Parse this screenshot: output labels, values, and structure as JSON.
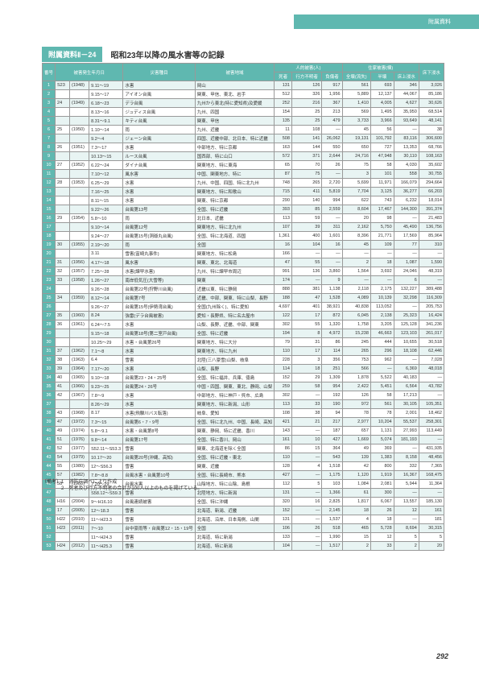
{
  "header_label": "附属資料",
  "title_badge": "附属資料Ⅱ－24",
  "title_text": "昭和23年以降の風水害等の記録",
  "page_number": "292",
  "notes": [
    "（備考）1　消防庁調べにより作成",
    "　　　　2　死者及び行方不明者の合計が100人以上のものを掲げている。"
  ],
  "columns": {
    "top": [
      "番号",
      "被害発生年月日",
      "災害種目",
      "被害地域",
      "人的被害(人)",
      "住家被害(棟)",
      "床下浸水"
    ],
    "human": [
      "死者",
      "行方不明者",
      "負傷者"
    ],
    "house": [
      "全壊(流失)",
      "半壊",
      "床上浸水"
    ]
  },
  "rows": [
    {
      "i": 1,
      "y": "S23",
      "ye": "(1948)",
      "d": "9.11～19",
      "n": "水害",
      "r": "岡山",
      "v": [
        "131",
        "126",
        "917",
        "561",
        "693",
        "346",
        "3,026"
      ]
    },
    {
      "i": 2,
      "y": "",
      "ye": "",
      "d": "9.15～17",
      "n": "アイオン台風",
      "r": "関東、甲信、東北、岩手",
      "v": [
        "512",
        "326",
        "1,956",
        "5,889",
        "12,137",
        "44,067",
        "85,186"
      ]
    },
    {
      "i": 3,
      "y": "24",
      "ye": "(1949)",
      "d": "6.18～23",
      "n": "デラ台風",
      "r": "九州から東北(特に愛知県)及愛媛",
      "v": [
        "252",
        "216",
        "367",
        "1,410",
        "4,005",
        "4,627",
        "30,626"
      ]
    },
    {
      "i": 4,
      "y": "",
      "ye": "",
      "d": "8.13～16",
      "n": "ジュディス台風",
      "r": "九州、四国",
      "v": [
        "154",
        "25",
        "213",
        "569",
        "1,495",
        "35,950",
        "68,514"
      ]
    },
    {
      "i": 5,
      "y": "",
      "ye": "",
      "d": "8.31～9.1",
      "n": "キティ台風",
      "r": "関東、甲信",
      "v": [
        "135",
        "25",
        "479",
        "3,733",
        "3,966",
        "93,649",
        "48,141"
      ]
    },
    {
      "i": 6,
      "y": "25",
      "ye": "(1950)",
      "d": "1.10～14",
      "n": "雨",
      "r": "九州、近畿",
      "v": [
        "11",
        "108",
        "—",
        "45",
        "56",
        "—",
        "38"
      ]
    },
    {
      "i": 7,
      "y": "",
      "ye": "",
      "d": "9.2～4",
      "n": "ジェーン台風",
      "r": "四国、近畿中部、北日本、特に近畿",
      "v": [
        "508",
        "141",
        "26,062",
        "19,131",
        "101,792",
        "83,116",
        "306,600"
      ]
    },
    {
      "i": 8,
      "y": "26",
      "ye": "(1951)",
      "d": "7.3～17",
      "n": "水害",
      "r": "中部地方、特に京都",
      "v": [
        "163",
        "144",
        "550",
        "650",
        "727",
        "13,353",
        "68,766"
      ]
    },
    {
      "i": 9,
      "y": "",
      "ye": "",
      "d": "10.13～15",
      "n": "ルース台風",
      "r": "国西部、特に山口",
      "v": [
        "572",
        "371",
        "2,644",
        "24,716",
        "47,948",
        "30,110",
        "108,163"
      ]
    },
    {
      "i": 10,
      "y": "27",
      "ye": "(1952)",
      "d": "6.22～24",
      "n": "ダイナ台風",
      "r": "関東地方、特に東海",
      "v": [
        "65",
        "70",
        "26",
        "75",
        "58",
        "4,030",
        "35,602"
      ]
    },
    {
      "i": 11,
      "y": "",
      "ye": "",
      "d": "7.10～12",
      "n": "風水害",
      "r": "中国、関東地方、特に",
      "v": [
        "87",
        "75",
        "—",
        "3",
        "101",
        "558",
        "30,755"
      ]
    },
    {
      "i": 12,
      "y": "28",
      "ye": "(1953)",
      "d": "6.25～29",
      "n": "水害",
      "r": "九州、中国、四国、特に北九州",
      "v": [
        "748",
        "265",
        "2,720",
        "5,699",
        "11,971",
        "166,079",
        "294,664"
      ]
    },
    {
      "i": 13,
      "y": "",
      "ye": "",
      "d": "7.16～25",
      "n": "水害",
      "r": "関東地方、特に和歌山",
      "v": [
        "715",
        "411",
        "5,819",
        "7,704",
        "3,125",
        "36,277",
        "66,203"
      ]
    },
    {
      "i": 14,
      "y": "",
      "ye": "",
      "d": "8.11～15",
      "n": "水害",
      "r": "関東、特に京都",
      "v": [
        "290",
        "140",
        "994",
        "622",
        "743",
        "6,232",
        "18,014"
      ]
    },
    {
      "i": 15,
      "y": "",
      "ye": "",
      "d": "9.22～26",
      "n": "台風第13号",
      "r": "全国、特に近畿",
      "v": [
        "393",
        "85",
        "2,559",
        "8,604",
        "17,467",
        "144,300",
        "391,374"
      ]
    },
    {
      "i": 16,
      "y": "29",
      "ye": "(1954)",
      "d": "5.8～10",
      "n": "雨",
      "r": "北日本、近畿",
      "v": [
        "113",
        "59",
        "—",
        "20",
        "98",
        "—",
        "21,483"
      ]
    },
    {
      "i": 17,
      "y": "",
      "ye": "",
      "d": "9.10～14",
      "n": "台風第12号",
      "r": "関東地方、特に北九州",
      "v": [
        "107",
        "39",
        "311",
        "2,162",
        "5,750",
        "45,490",
        "136,756"
      ]
    },
    {
      "i": 18,
      "y": "",
      "ye": "",
      "d": "9.24～27",
      "n": "台風第15号(洞爺丸台風)",
      "r": "全国、特に北海道、四国",
      "v": [
        "1,361",
        "400",
        "1,601",
        "8,396",
        "21,771",
        "17,569",
        "85,964"
      ]
    },
    {
      "i": 19,
      "y": "30",
      "ye": "(1955)",
      "d": "2.19～20",
      "n": "雨",
      "r": "全国",
      "v": [
        "16",
        "104",
        "16",
        "45",
        "109",
        "77",
        "310"
      ]
    },
    {
      "i": 20,
      "y": "",
      "ye": "",
      "d": "3.11",
      "n": "雪害(富崎丸事件)",
      "r": "関東地方、特に松島",
      "v": [
        "166",
        "—",
        "—",
        "—",
        "—",
        "—",
        "—"
      ]
    },
    {
      "i": 21,
      "y": "31",
      "ye": "(1956)",
      "d": "4.17～18",
      "n": "風水害",
      "r": "関東、東北、北海道",
      "v": [
        "47",
        "55",
        "—",
        "2",
        "18",
        "1,087",
        "1,590"
      ]
    },
    {
      "i": 22,
      "y": "32",
      "ye": "(1957)",
      "d": "7.25～28",
      "n": "水害(諫早水害)",
      "r": "九州、特に諫早市周辺",
      "v": [
        "991",
        "136",
        "3,860",
        "1,564",
        "3,692",
        "24,046",
        "48,319"
      ]
    },
    {
      "i": 23,
      "y": "33",
      "ye": "(1958)",
      "d": "1.26～27",
      "n": "南岸低気圧(大雪等)",
      "r": "関東",
      "v": [
        "174",
        "—",
        "9",
        "—",
        "—",
        "6",
        "—"
      ]
    },
    {
      "i": 24,
      "y": "",
      "ye": "",
      "d": "9.26～28",
      "n": "台風第22号(狩野川台風)",
      "r": "近畿以東、特に静岡",
      "v": [
        "888",
        "381",
        "1,138",
        "2,118",
        "2,175",
        "132,227",
        "389,488"
      ]
    },
    {
      "i": 25,
      "y": "34",
      "ye": "(1959)",
      "d": "8.12～14",
      "n": "台風第7号",
      "r": "近畿、中部、関東、特に山梨、長野",
      "v": [
        "188",
        "47",
        "1,528",
        "4,089",
        "10,139",
        "32,298",
        "116,309"
      ]
    },
    {
      "i": 26,
      "y": "",
      "ye": "",
      "d": "9.26～27",
      "n": "台風第15号(伊勢湾台風)",
      "r": "全国(九州除く)、特に愛知",
      "v": [
        "4,697",
        "401",
        "38,921",
        "40,838",
        "113,052",
        "—",
        "205,753"
      ]
    },
    {
      "i": 27,
      "y": "35",
      "ye": "(1960)",
      "d": "8.24",
      "n": "強雷(デラ台風被害)",
      "r": "愛知・長野県、特に名古屋市",
      "v": [
        "122",
        "17",
        "872",
        "6,045",
        "2,138",
        "25,323",
        "16,424"
      ]
    },
    {
      "i": 28,
      "y": "36",
      "ye": "(1961)",
      "d": "6.24～7.5",
      "n": "水害",
      "r": "山梨、長野、近畿、中部、関東",
      "v": [
        "302",
        "55",
        "1,320",
        "1,758",
        "3,205",
        "125,128",
        "341,236"
      ]
    },
    {
      "i": 29,
      "y": "",
      "ye": "",
      "d": "9.15～18",
      "n": "台風第18号(第二室戸台風)",
      "r": "全国、特に近畿",
      "v": [
        "194",
        "8",
        "4,972",
        "15,238",
        "46,663",
        "123,103",
        "261,017"
      ]
    },
    {
      "i": 30,
      "y": "",
      "ye": "",
      "d": "10.25～29",
      "n": "水害・台風第26号",
      "r": "関東地方、特に大分",
      "v": [
        "79",
        "31",
        "86",
        "245",
        "444",
        "10,655",
        "30,518"
      ]
    },
    {
      "i": 31,
      "y": "37",
      "ye": "(1962)",
      "d": "7.1～8",
      "n": "水害",
      "r": "関東地方、特に九州",
      "v": [
        "110",
        "17",
        "114",
        "265",
        "296",
        "18,108",
        "62,446"
      ]
    },
    {
      "i": 32,
      "y": "38",
      "ye": "(1963)",
      "d": "6.4",
      "n": "雪害",
      "r": "北陸(三八豪雪)山梨、岐阜",
      "v": [
        "228",
        "3",
        "356",
        "753",
        "962",
        "—",
        "7,028"
      ]
    },
    {
      "i": 33,
      "y": "39",
      "ye": "(1964)",
      "d": "7.17～20",
      "n": "水害",
      "r": "山梨、長野",
      "v": [
        "114",
        "18",
        "251",
        "566",
        "—",
        "6,369",
        "48,018"
      ]
    },
    {
      "i": 34,
      "y": "40",
      "ye": "(1965)",
      "d": "9.10～18",
      "n": "台風第23・24・25号",
      "r": "全国、特に福井、兵庫、徳島",
      "v": [
        "152",
        "29",
        "1,309",
        "1,878",
        "5,522",
        "40,183",
        "—"
      ]
    },
    {
      "i": 35,
      "y": "41",
      "ye": "(1966)",
      "d": "9.23～25",
      "n": "台風第24・26号",
      "r": "中国・四国、関東、東北、静岡、山梨",
      "v": [
        "259",
        "58",
        "954",
        "2,422",
        "5,451",
        "6,564",
        "43,782"
      ]
    },
    {
      "i": 36,
      "y": "42",
      "ye": "(1967)",
      "d": "7.8～9",
      "n": "水害",
      "r": "中部地方、特に神戸・呉市、広島",
      "v": [
        "302",
        "—",
        "192",
        "126",
        "58",
        "17,213",
        "—"
      ]
    },
    {
      "i": 37,
      "y": "",
      "ye": "",
      "d": "8.26～29",
      "n": "水害",
      "r": "関東地方、特に新潟、山形",
      "v": [
        "113",
        "33",
        "190",
        "972",
        "561",
        "30,105",
        "105,351"
      ]
    },
    {
      "i": 38,
      "y": "43",
      "ye": "(1968)",
      "d": "8.17",
      "n": "水害(飛騨川バス転落)",
      "r": "岐阜、愛知",
      "v": [
        "108",
        "38",
        "94",
        "78",
        "78",
        "2,001",
        "18,462"
      ]
    },
    {
      "i": 39,
      "y": "47",
      "ye": "(1972)",
      "d": "7.3～15",
      "n": "台風第6・7・9号",
      "r": "全国、特に北九州、中国、長崎、高知",
      "v": [
        "421",
        "21",
        "217",
        "2,977",
        "10,204",
        "55,537",
        "258,301"
      ]
    },
    {
      "i": 40,
      "y": "49",
      "ye": "(1974)",
      "d": "5.8～9.1",
      "n": "水害・台風第8号",
      "r": "関東、静岡、特に近畿、香川",
      "v": [
        "143",
        "—",
        "187",
        "657",
        "1,131",
        "27,993",
        "113,449"
      ]
    },
    {
      "i": 41,
      "y": "51",
      "ye": "(1976)",
      "d": "9.8～14",
      "n": "台風第17号",
      "r": "全国、特に香川、岡山",
      "v": [
        "161",
        "10",
        "427",
        "1,669",
        "5,074",
        "181,193",
        "—"
      ]
    },
    {
      "i": 42,
      "y": "52",
      "ye": "(1977)",
      "d": "S52.11～S53.3",
      "n": "雪害",
      "r": "関東、北海道を除く全国",
      "v": [
        "86",
        "15",
        "364",
        "49",
        "369",
        "—",
        "431,935"
      ]
    },
    {
      "i": 43,
      "y": "54",
      "ye": "(1979)",
      "d": "10.17～20",
      "n": "台風第20号(沖縄、高知)",
      "r": "全国、特に近畿・東北",
      "v": [
        "110",
        "—",
        "543",
        "139",
        "1,383",
        "8,158",
        "48,456"
      ]
    },
    {
      "i": 44,
      "y": "55",
      "ye": "(1980)",
      "d": "12～S56.3",
      "n": "雪害",
      "r": "関東、近畿",
      "v": [
        "128",
        "4",
        "1,518",
        "42",
        "800",
        "332",
        "7,365"
      ]
    },
    {
      "i": 45,
      "y": "57",
      "ye": "(1982)",
      "d": "7.8～8.8",
      "n": "台風水害・台風第10号",
      "r": "全国、特に長崎市、熊本",
      "v": [
        "427",
        "—",
        "1,175",
        "1,120",
        "1,919",
        "16,367",
        "168,475"
      ]
    },
    {
      "i": 46,
      "y": "58",
      "ye": "(1983)",
      "d": "7.20～29",
      "n": "台風水害",
      "r": "山陰地方、特に山陰、島根",
      "v": [
        "112",
        "5",
        "103",
        "1,084",
        "2,081",
        "5,944",
        "11,364"
      ]
    },
    {
      "i": 47,
      "y": "",
      "ye": "",
      "d": "S58.12～S59.3",
      "n": "雪害",
      "r": "北陸地方、特に新潟",
      "v": [
        "131",
        "—",
        "1,366",
        "61",
        "300",
        "—",
        "—"
      ]
    },
    {
      "i": 48,
      "y": "H16",
      "ye": "(2004)",
      "d": "9～H16.10",
      "n": "台風連続被害",
      "r": "全国、特に沖縄",
      "v": [
        "320",
        "16",
        "2,825",
        "1,817",
        "6,067",
        "13,557",
        "185,130"
      ]
    },
    {
      "i": 49,
      "y": "17",
      "ye": "(2005)",
      "d": "12～18.3",
      "n": "雪害",
      "r": "北海道、新潟、近畿",
      "v": [
        "152",
        "—",
        "2,145",
        "18",
        "26",
        "12",
        "161"
      ]
    },
    {
      "i": 50,
      "y": "H22",
      "ye": "(2010)",
      "d": "11～H23.3",
      "n": "雪害",
      "r": "北海道、沿岸、日本海側、山間",
      "v": [
        "131",
        "—",
        "1,537",
        "4",
        "18",
        "—",
        "181"
      ]
    },
    {
      "i": 51,
      "y": "H23",
      "ye": "(2011)",
      "d": "7～10",
      "n": "台中豪雨等・台風第12・15・19号",
      "r": "全国",
      "v": [
        "106",
        "26",
        "518",
        "465",
        "5,728",
        "8,694",
        "30,315"
      ]
    },
    {
      "i": 52,
      "y": "",
      "ye": "",
      "d": "11～H24.3",
      "n": "雪害",
      "r": "北海道、特に新潟",
      "v": [
        "133",
        "—",
        "1,990",
        "15",
        "12",
        "5",
        "5"
      ]
    },
    {
      "i": 53,
      "y": "H24",
      "ye": "(2012)",
      "d": "11～H25.3",
      "n": "雪害",
      "r": "北海道、特に新潟",
      "v": [
        "104",
        "—",
        "1,517",
        "2",
        "33",
        "2",
        "20"
      ]
    }
  ]
}
